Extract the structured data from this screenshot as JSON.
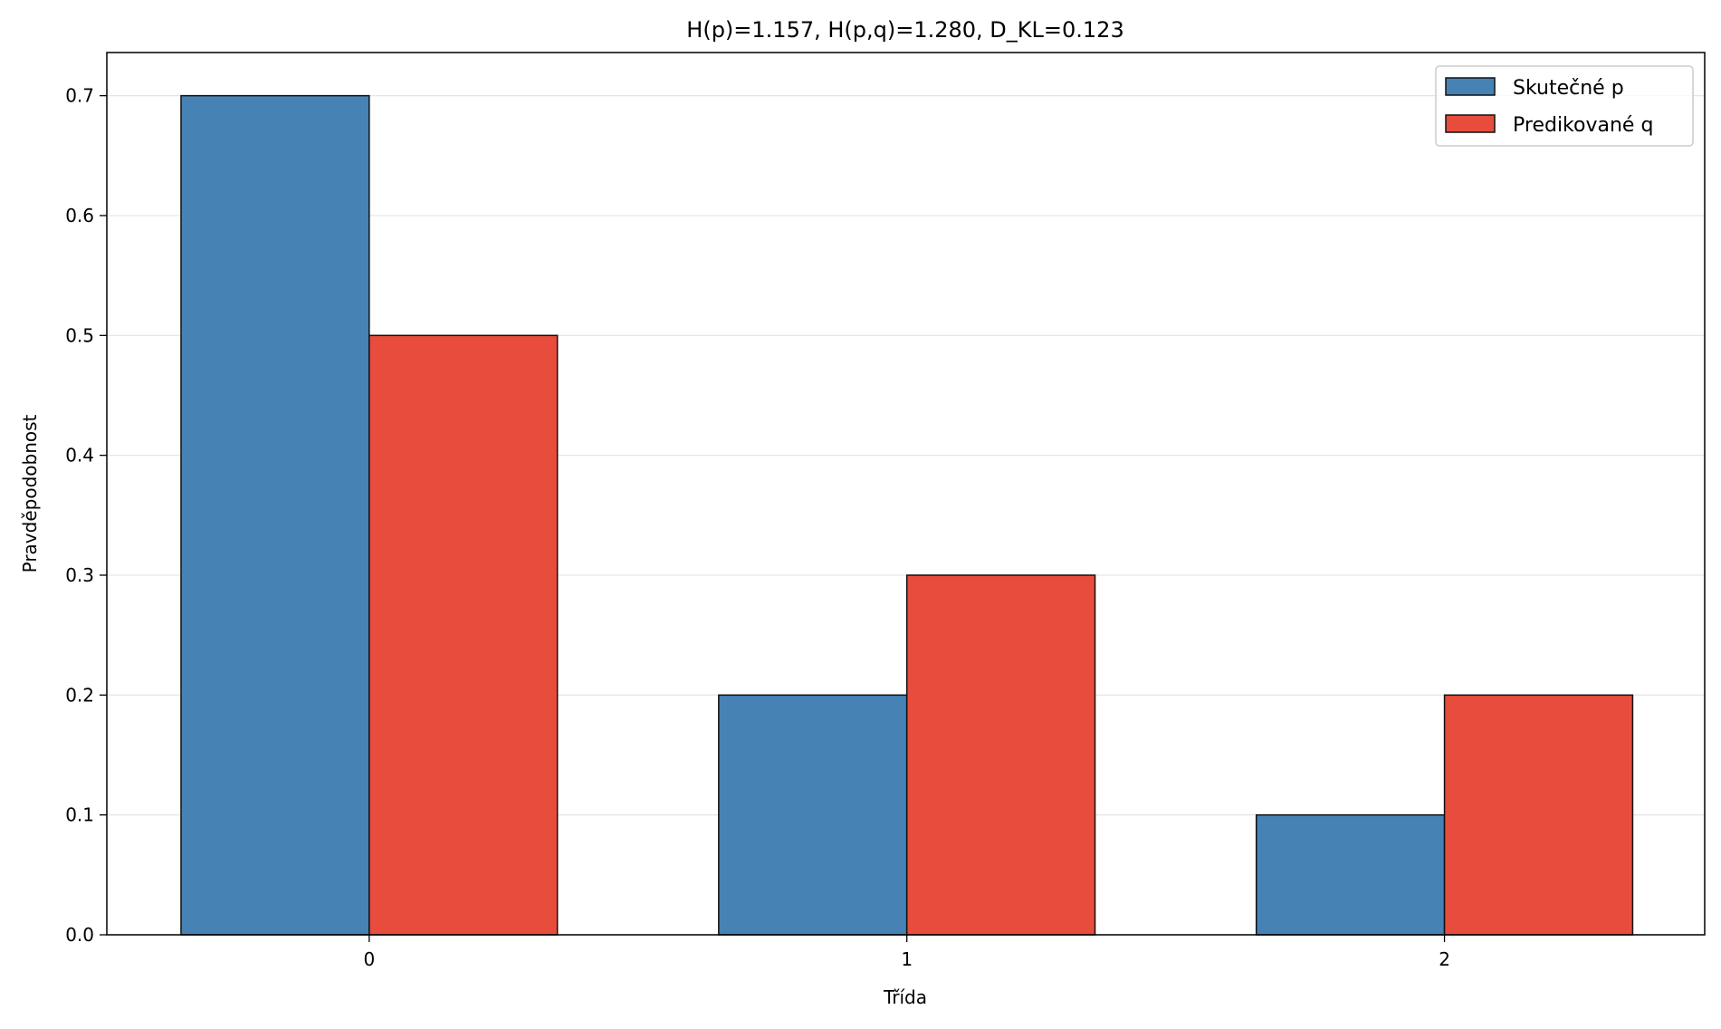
{
  "chart_data": {
    "type": "bar",
    "title": "H(p)=1.157, H(p,q)=1.280, D_KL=0.123",
    "xlabel": "Třída",
    "ylabel": "Pravděpodobnost",
    "categories": [
      "0",
      "1",
      "2"
    ],
    "series": [
      {
        "name": "Skutečné p",
        "values": [
          0.7,
          0.2,
          0.1
        ],
        "color": "#4682b4"
      },
      {
        "name": "Predikované q",
        "values": [
          0.5,
          0.3,
          0.2
        ],
        "color": "#e74c3c"
      }
    ],
    "xlim": [
      -0.488,
      2.484
    ],
    "ylim": [
      0,
      0.736
    ],
    "yticks": [
      "0.0",
      "0.1",
      "0.2",
      "0.3",
      "0.4",
      "0.5",
      "0.6",
      "0.7"
    ],
    "bar_width": 0.35,
    "grid": "y",
    "legend": "top-right"
  }
}
